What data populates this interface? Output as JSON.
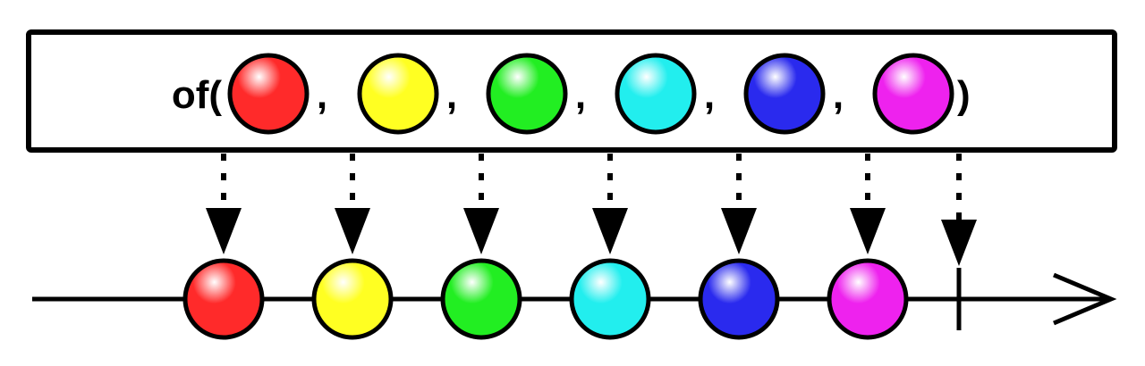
{
  "operator": {
    "name": "of(",
    "separator": ",",
    "close": ")"
  },
  "marbles": [
    {
      "color": "#ff2a2a",
      "name": "red"
    },
    {
      "color": "#ffff22",
      "name": "yellow"
    },
    {
      "color": "#22ee22",
      "name": "green"
    },
    {
      "color": "#22eeee",
      "name": "cyan"
    },
    {
      "color": "#2a2aee",
      "name": "blue"
    },
    {
      "color": "#ee22ee",
      "name": "magenta"
    }
  ],
  "stream": {
    "completes": true
  }
}
